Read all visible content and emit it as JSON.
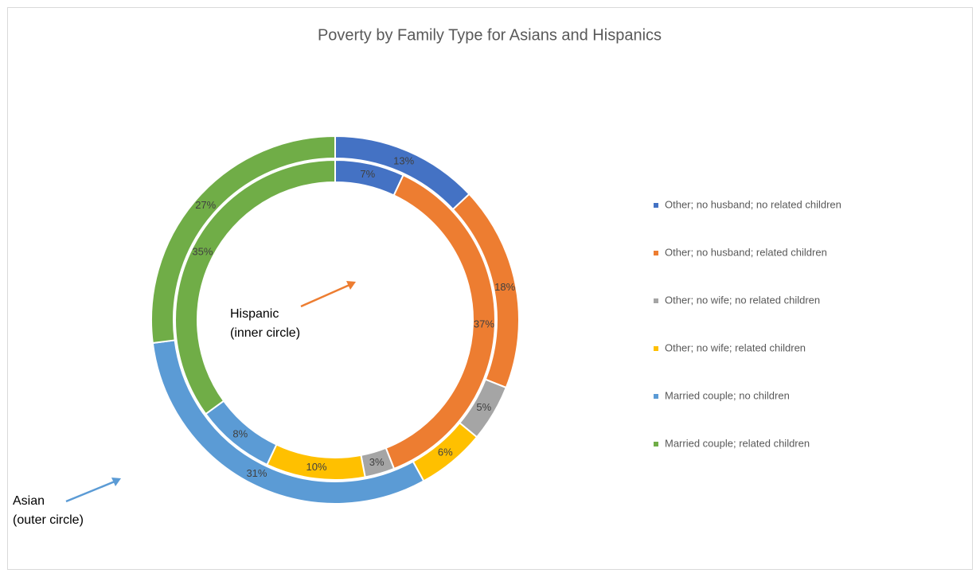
{
  "chart_data": {
    "type": "doughnut",
    "title": "Poverty by Family Type for Asians and Hispanics",
    "categories": [
      "Other; no husband; no related children",
      "Other; no husband; related children",
      "Other; no wife; no related children",
      "Other; no wife; related children",
      "Married couple; no children",
      "Married couple; related children"
    ],
    "colors": [
      "#4472c4",
      "#ed7d31",
      "#a5a5a5",
      "#ffc000",
      "#5b9bd5",
      "#70ad47"
    ],
    "series": [
      {
        "name": "Asian",
        "values": [
          13,
          18,
          5,
          6,
          31,
          27
        ],
        "value_labels": [
          "13%",
          "18%",
          "5%",
          "6%",
          "31%",
          "27%"
        ]
      },
      {
        "name": "Hispanic",
        "values": [
          7,
          37,
          3,
          10,
          8,
          35
        ],
        "value_labels": [
          "7%",
          "37%",
          "3%",
          "10%",
          "8%",
          "35%"
        ]
      }
    ],
    "annotations": [
      "(outer circle)",
      "(inner circle)"
    ],
    "legend": "right"
  }
}
